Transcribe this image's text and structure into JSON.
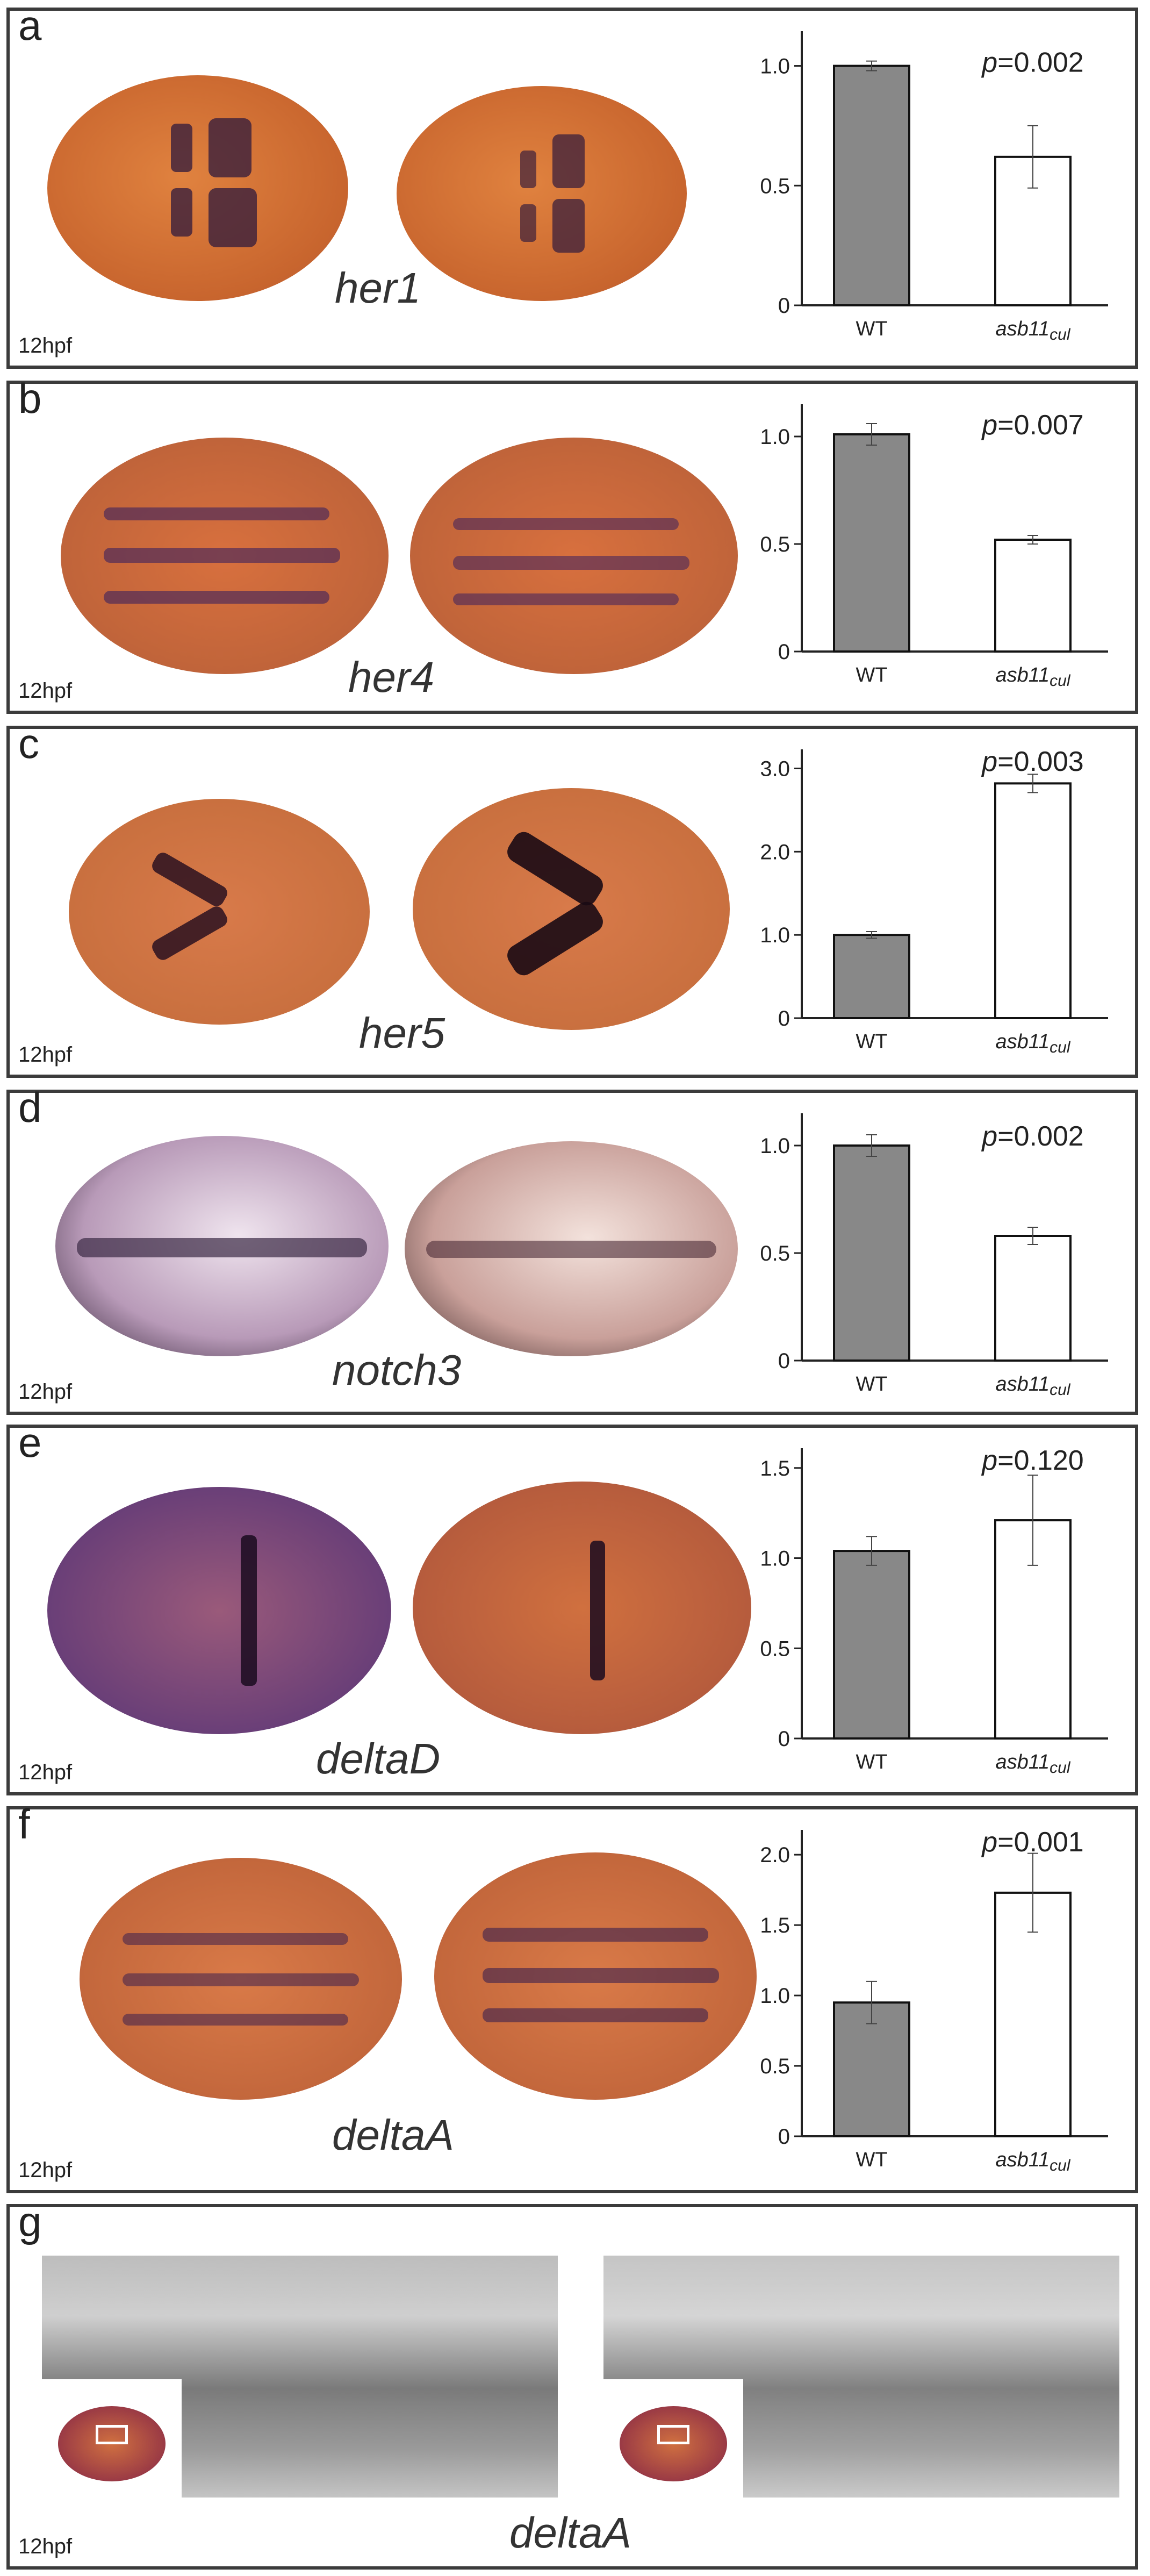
{
  "column_headers": {
    "wt": "WT",
    "mutant": "asb11",
    "mutant_sub": "cul"
  },
  "stage_label": "12hpf",
  "colors": {
    "wt_bar": "#888888",
    "mutant_bar": "#ffffff",
    "embryo_orange": "#d9713b",
    "stain_purple": "#3a1f5e"
  },
  "panels": [
    {
      "letter": "a",
      "gene": "her1",
      "stage": "12hpf"
    },
    {
      "letter": "b",
      "gene": "her4",
      "stage": "12hpf"
    },
    {
      "letter": "c",
      "gene": "her5",
      "stage": "12hpf"
    },
    {
      "letter": "d",
      "gene": "notch3",
      "stage": "12hpf"
    },
    {
      "letter": "e",
      "gene": "deltaD",
      "stage": "12hpf"
    },
    {
      "letter": "f",
      "gene": "deltaA",
      "stage": "12hpf"
    },
    {
      "letter": "g",
      "gene": "deltaA",
      "stage": "12hpf"
    }
  ],
  "chart_data": [
    {
      "type": "bar",
      "categories": [
        "WT",
        "asb11cul"
      ],
      "values": [
        1.0,
        0.62
      ],
      "errors": [
        0.02,
        0.13
      ],
      "yticks": [
        "0",
        "0.5",
        "1.0"
      ],
      "tick_values": [
        0,
        0.5,
        1.0
      ],
      "ylim": [
        0,
        1.1
      ],
      "p_label": "p",
      "p_value": "=0.002"
    },
    {
      "type": "bar",
      "categories": [
        "WT",
        "asb11cul"
      ],
      "values": [
        1.01,
        0.52
      ],
      "errors": [
        0.05,
        0.02
      ],
      "yticks": [
        "0",
        "0.5",
        "1.0"
      ],
      "tick_values": [
        0,
        0.5,
        1.0
      ],
      "ylim": [
        0,
        1.1
      ],
      "p_label": "p",
      "p_value": "=0.007"
    },
    {
      "type": "bar",
      "categories": [
        "WT",
        "asb11cul"
      ],
      "values": [
        1.0,
        2.82
      ],
      "errors": [
        0.04,
        0.11
      ],
      "yticks": [
        "0",
        "1.0",
        "2.0",
        "3.0"
      ],
      "tick_values": [
        0,
        1.0,
        2.0,
        3.0
      ],
      "ylim": [
        0,
        3.1
      ],
      "p_label": "p",
      "p_value": "=0.003"
    },
    {
      "type": "bar",
      "categories": [
        "WT",
        "asb11cul"
      ],
      "values": [
        1.0,
        0.58
      ],
      "errors": [
        0.05,
        0.04
      ],
      "yticks": [
        "0",
        "0.5",
        "1.0"
      ],
      "tick_values": [
        0,
        0.5,
        1.0
      ],
      "ylim": [
        0,
        1.1
      ],
      "p_label": "p",
      "p_value": "=0.002"
    },
    {
      "type": "bar",
      "categories": [
        "WT",
        "asb11cul"
      ],
      "values": [
        1.04,
        1.21
      ],
      "errors": [
        0.08,
        0.25
      ],
      "yticks": [
        "0",
        "0.5",
        "1.0",
        "1.5"
      ],
      "tick_values": [
        0,
        0.5,
        1.0,
        1.5
      ],
      "ylim": [
        0,
        1.55
      ],
      "p_label": "p",
      "p_value": "=0.120"
    },
    {
      "type": "bar",
      "categories": [
        "WT",
        "asb11cul"
      ],
      "values": [
        0.95,
        1.73
      ],
      "errors": [
        0.15,
        0.28
      ],
      "yticks": [
        "0",
        "0.5",
        "1.0",
        "1.5",
        "2.0"
      ],
      "tick_values": [
        0,
        0.5,
        1.0,
        1.5,
        2.0
      ],
      "ylim": [
        0,
        2.1
      ],
      "p_label": "p",
      "p_value": "=0.001"
    }
  ]
}
